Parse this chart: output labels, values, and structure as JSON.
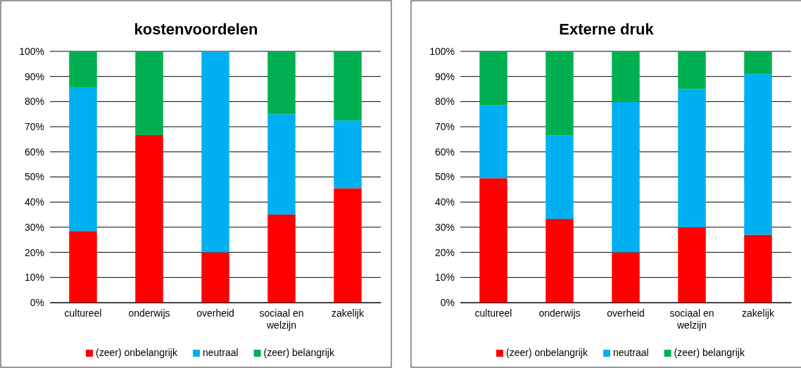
{
  "chart_data": [
    {
      "type": "bar",
      "title": "kostenvoordelen",
      "stacked": true,
      "categories": [
        "cultureel",
        "onderwijs",
        "overheid",
        "sociaal en welzijn",
        "zakelijk"
      ],
      "series": [
        {
          "name": "(zeer) onbelangrijk",
          "color": "#ff0000",
          "values": [
            28.5,
            66.7,
            20,
            35,
            45.5
          ]
        },
        {
          "name": "neutraal",
          "color": "#00b0f0",
          "values": [
            57,
            0,
            80,
            40,
            27
          ]
        },
        {
          "name": "(zeer) belangrijk",
          "color": "#00b050",
          "values": [
            14.5,
            33.3,
            0,
            25,
            27.5
          ]
        }
      ],
      "ylim": [
        0,
        100
      ],
      "yticks": [
        {
          "value": 0,
          "label": "0%"
        },
        {
          "value": 10,
          "label": "10%"
        },
        {
          "value": 20,
          "label": "20%"
        },
        {
          "value": 30,
          "label": "30%"
        },
        {
          "value": 40,
          "label": "40%"
        },
        {
          "value": 50,
          "label": "50%"
        },
        {
          "value": 60,
          "label": "60%"
        },
        {
          "value": 70,
          "label": "70%"
        },
        {
          "value": 80,
          "label": "80%"
        },
        {
          "value": 90,
          "label": "90%"
        },
        {
          "value": 100,
          "label": "100%"
        }
      ],
      "grid": "y",
      "legend": "bottom"
    },
    {
      "type": "bar",
      "title": "Externe druk",
      "stacked": true,
      "categories": [
        "cultureel",
        "onderwijs",
        "overheid",
        "sociaal en welzijn",
        "zakelijk"
      ],
      "series": [
        {
          "name": "(zeer) onbelangrijk",
          "color": "#ff0000",
          "values": [
            49.5,
            33.3,
            20,
            30,
            27
          ]
        },
        {
          "name": "neutraal",
          "color": "#00b0f0",
          "values": [
            29,
            33.3,
            60,
            55,
            64
          ]
        },
        {
          "name": "(zeer) belangrijk",
          "color": "#00b050",
          "values": [
            21.5,
            33.4,
            20,
            15,
            9
          ]
        }
      ],
      "ylim": [
        0,
        100
      ],
      "yticks": [
        {
          "value": 0,
          "label": "0%"
        },
        {
          "value": 10,
          "label": "10%"
        },
        {
          "value": 20,
          "label": "20%"
        },
        {
          "value": 30,
          "label": "30%"
        },
        {
          "value": 40,
          "label": "40%"
        },
        {
          "value": 50,
          "label": "50%"
        },
        {
          "value": 60,
          "label": "60%"
        },
        {
          "value": 70,
          "label": "70%"
        },
        {
          "value": 80,
          "label": "80%"
        },
        {
          "value": 90,
          "label": "90%"
        },
        {
          "value": 100,
          "label": "100%"
        }
      ],
      "grid": "y",
      "legend": "bottom"
    }
  ]
}
